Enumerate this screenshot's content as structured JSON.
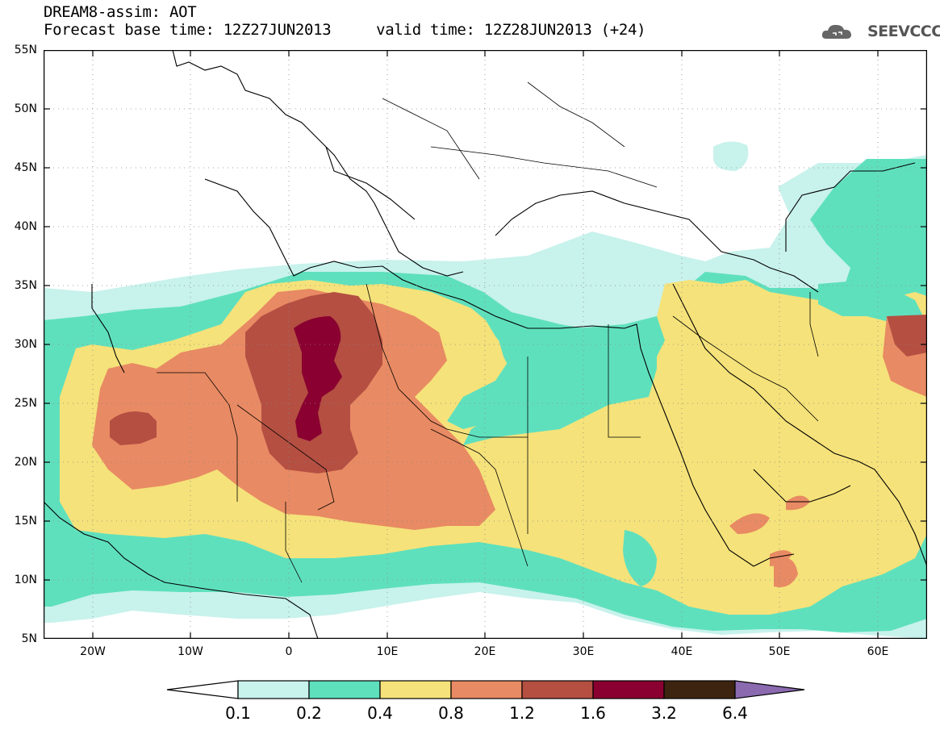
{
  "header": {
    "title_line1": "DREAM8-assim: AOT",
    "title_line2": "Forecast base time: 12Z27JUN2013     valid time: 12Z28JUN2013 (+24)"
  },
  "logo": {
    "text": "SEEVCCC",
    "icon": "cloud-icon"
  },
  "map": {
    "lat_labels": [
      "55N",
      "50N",
      "45N",
      "40N",
      "35N",
      "30N",
      "25N",
      "20N",
      "15N",
      "10N",
      "5N"
    ],
    "lon_labels": [
      "20W",
      "10W",
      "0",
      "10E",
      "20E",
      "30E",
      "40E",
      "50E",
      "60E"
    ]
  },
  "colorbar": {
    "ticks": [
      "0.1",
      "0.2",
      "0.4",
      "0.8",
      "1.2",
      "1.6",
      "3.2",
      "6.4"
    ],
    "colors": [
      "#ffffff",
      "#c8f2ec",
      "#5fe0bd",
      "#f5e27a",
      "#e88a63",
      "#b44f42",
      "#8a0030",
      "#3d2410",
      "#8b6ab0"
    ]
  },
  "colors": {
    "c1": "#c8f2ec",
    "c2": "#5fe0bd",
    "c3": "#f5e27a",
    "c4": "#e88a63",
    "c5": "#b44f42",
    "c6": "#8a0030"
  }
}
